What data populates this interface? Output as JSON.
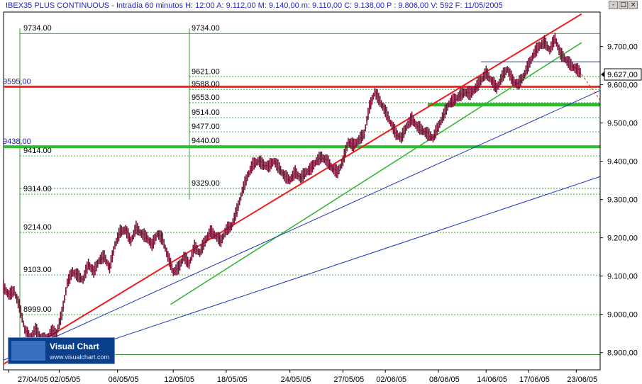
{
  "title_bar": {
    "text": "IBEX35 PLUS CONTINUOUS - Intradía 60 minutos  H: 12:00  A: 9.112,00  M: 9.140,00  m: 9.110,00  C: 9.138,00  P : 9.806,00  V: 592  F: 11/05/2005",
    "buttons": [
      "-",
      "□",
      "×"
    ]
  },
  "logo": {
    "name": "Visual Chart",
    "url": "www.visualchart.com"
  },
  "price_badge": "9.627,00",
  "colors": {
    "bars": "#7b1338",
    "support_green": "#2bbf2b",
    "resistance_red": "#ff2020",
    "trend_red": "#ee1c1c",
    "trend_green": "#35b835",
    "trend_blue": "#1c2fbf",
    "grid_green": "#008000",
    "axis_text": "#000000"
  },
  "chart_data": {
    "type": "candlestick",
    "title": "IBEX35 PLUS CONTINUOUS - Intradía 60 minutos",
    "x_ticks": [
      "27/04/05",
      "02/05/05",
      "06/05/05",
      "12/05/05",
      "18/05/05",
      "24/05/05",
      "27/05/05",
      "02/06/05",
      "08/06/05",
      "14/06/05",
      "17/06/05",
      "23/06/05"
    ],
    "y_ticks": [
      "9.700,00",
      "9.600,00",
      "9.500,00",
      "9.400,00",
      "9.300,00",
      "9.200,00",
      "9.100,00",
      "9.000,00",
      "8.900,00"
    ],
    "ylim": [
      8855,
      9790
    ],
    "fib_levels": [
      {
        "label": "9734.00",
        "value": 9734
      },
      {
        "label": "9621.00",
        "value": 9621
      },
      {
        "label": "9588.00",
        "value": 9588
      },
      {
        "label": "9553.00",
        "value": 9553
      },
      {
        "label": "9514.00",
        "value": 9514
      },
      {
        "label": "9477.00",
        "value": 9477
      },
      {
        "label": "9440.00",
        "value": 9440
      },
      {
        "label": "9414.00",
        "value": 9414
      },
      {
        "label": "9329.00",
        "value": 9329
      },
      {
        "label": "9314.00",
        "value": 9314
      },
      {
        "label": "9214.00",
        "value": 9214
      },
      {
        "label": "9103.00",
        "value": 9103
      },
      {
        "label": "8999.00",
        "value": 8999
      },
      {
        "label": "",
        "value": 8895
      }
    ],
    "horizontal_lines": [
      {
        "label": "9595,00",
        "value": 9595,
        "color": "red"
      },
      {
        "label": "9438,00",
        "value": 9438,
        "color": "green"
      },
      {
        "label": "",
        "value": 9548,
        "color": "green"
      }
    ],
    "price_path": [
      [
        0,
        9070
      ],
      [
        2,
        9050
      ],
      [
        4,
        9060
      ],
      [
        6,
        9020
      ],
      [
        8,
        8960
      ],
      [
        10,
        8935
      ],
      [
        12,
        8960
      ],
      [
        14,
        8940
      ],
      [
        16,
        8930
      ],
      [
        18,
        8955
      ],
      [
        20,
        8950
      ],
      [
        22,
        9000
      ],
      [
        24,
        9080
      ],
      [
        26,
        9110
      ],
      [
        28,
        9100
      ],
      [
        30,
        9090
      ],
      [
        32,
        9130
      ],
      [
        34,
        9110
      ],
      [
        36,
        9140
      ],
      [
        38,
        9150
      ],
      [
        40,
        9120
      ],
      [
        42,
        9180
      ],
      [
        44,
        9215
      ],
      [
        46,
        9220
      ],
      [
        48,
        9190
      ],
      [
        50,
        9225
      ],
      [
        52,
        9210
      ],
      [
        54,
        9200
      ],
      [
        56,
        9180
      ],
      [
        58,
        9210
      ],
      [
        60,
        9195
      ],
      [
        62,
        9150
      ],
      [
        64,
        9110
      ],
      [
        66,
        9120
      ],
      [
        68,
        9150
      ],
      [
        70,
        9130
      ],
      [
        72,
        9175
      ],
      [
        74,
        9160
      ],
      [
        76,
        9190
      ],
      [
        78,
        9215
      ],
      [
        80,
        9205
      ],
      [
        82,
        9190
      ],
      [
        84,
        9220
      ],
      [
        86,
        9230
      ],
      [
        88,
        9270
      ],
      [
        90,
        9320
      ],
      [
        92,
        9360
      ],
      [
        94,
        9390
      ],
      [
        96,
        9400
      ],
      [
        98,
        9390
      ],
      [
        100,
        9385
      ],
      [
        102,
        9400
      ],
      [
        104,
        9380
      ],
      [
        106,
        9360
      ],
      [
        108,
        9350
      ],
      [
        110,
        9370
      ],
      [
        112,
        9355
      ],
      [
        114,
        9370
      ],
      [
        116,
        9380
      ],
      [
        118,
        9400
      ],
      [
        120,
        9410
      ],
      [
        122,
        9400
      ],
      [
        124,
        9380
      ],
      [
        126,
        9370
      ],
      [
        128,
        9400
      ],
      [
        130,
        9450
      ],
      [
        132,
        9440
      ],
      [
        134,
        9455
      ],
      [
        136,
        9470
      ],
      [
        138,
        9540
      ],
      [
        140,
        9580
      ],
      [
        142,
        9555
      ],
      [
        144,
        9530
      ],
      [
        146,
        9500
      ],
      [
        148,
        9470
      ],
      [
        150,
        9460
      ],
      [
        152,
        9490
      ],
      [
        154,
        9510
      ],
      [
        156,
        9490
      ],
      [
        158,
        9480
      ],
      [
        160,
        9470
      ],
      [
        162,
        9460
      ],
      [
        164,
        9490
      ],
      [
        166,
        9520
      ],
      [
        168,
        9550
      ],
      [
        170,
        9560
      ],
      [
        172,
        9570
      ],
      [
        174,
        9580
      ],
      [
        176,
        9575
      ],
      [
        178,
        9590
      ],
      [
        180,
        9610
      ],
      [
        182,
        9630
      ],
      [
        184,
        9610
      ],
      [
        186,
        9590
      ],
      [
        188,
        9620
      ],
      [
        190,
        9640
      ],
      [
        192,
        9610
      ],
      [
        194,
        9600
      ],
      [
        196,
        9620
      ],
      [
        198,
        9650
      ],
      [
        200,
        9680
      ],
      [
        202,
        9700
      ],
      [
        204,
        9710
      ],
      [
        206,
        9690
      ],
      [
        208,
        9720
      ],
      [
        210,
        9680
      ],
      [
        212,
        9665
      ],
      [
        214,
        9650
      ],
      [
        216,
        9640
      ],
      [
        218,
        9627
      ]
    ],
    "trendlines": [
      {
        "color": "red",
        "from": [
          0,
          8870
        ],
        "to": [
          218,
          9785
        ]
      },
      {
        "color": "green",
        "from": [
          63,
          9026
        ],
        "to": [
          218,
          9710
        ]
      },
      {
        "color": "blue",
        "from": [
          0,
          8880
        ],
        "to": [
          225,
          9585
        ]
      },
      {
        "color": "blue",
        "from": [
          20,
          8885
        ],
        "to": [
          225,
          9360
        ]
      }
    ]
  }
}
